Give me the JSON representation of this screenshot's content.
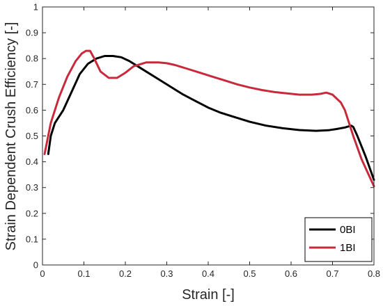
{
  "chart_data": {
    "type": "line",
    "title": "",
    "xlabel": "Strain [-]",
    "ylabel": "Strain Dependent Crush Efficiency [-]",
    "xlim": [
      0,
      0.8
    ],
    "ylim": [
      0,
      1
    ],
    "xticks": [
      "0",
      "0.1",
      "0.2",
      "0.3",
      "0.4",
      "0.5",
      "0.6",
      "0.7",
      "0.8"
    ],
    "yticks": [
      "0",
      "0.1",
      "0.2",
      "0.3",
      "0.4",
      "0.5",
      "0.6",
      "0.7",
      "0.8",
      "0.9",
      "1"
    ],
    "grid": false,
    "legend_position": "bottom-right",
    "series": [
      {
        "name": "0BI",
        "color": "#000000",
        "x": [
          0.014,
          0.02,
          0.03,
          0.05,
          0.07,
          0.09,
          0.11,
          0.13,
          0.15,
          0.17,
          0.19,
          0.21,
          0.23,
          0.25,
          0.28,
          0.31,
          0.34,
          0.37,
          0.4,
          0.43,
          0.46,
          0.5,
          0.54,
          0.58,
          0.62,
          0.66,
          0.69,
          0.71,
          0.73,
          0.745,
          0.75,
          0.76,
          0.78,
          0.8
        ],
        "y": [
          0.43,
          0.5,
          0.55,
          0.6,
          0.67,
          0.74,
          0.78,
          0.8,
          0.81,
          0.81,
          0.805,
          0.79,
          0.77,
          0.75,
          0.72,
          0.69,
          0.66,
          0.635,
          0.61,
          0.59,
          0.575,
          0.555,
          0.54,
          0.53,
          0.523,
          0.52,
          0.522,
          0.527,
          0.533,
          0.54,
          0.535,
          0.5,
          0.42,
          0.33
        ]
      },
      {
        "name": "1BI",
        "color": "#c8293b",
        "x": [
          0.005,
          0.01,
          0.02,
          0.04,
          0.06,
          0.08,
          0.095,
          0.105,
          0.115,
          0.125,
          0.14,
          0.16,
          0.18,
          0.2,
          0.22,
          0.25,
          0.28,
          0.3,
          0.32,
          0.35,
          0.38,
          0.41,
          0.44,
          0.47,
          0.5,
          0.53,
          0.56,
          0.59,
          0.62,
          0.65,
          0.67,
          0.685,
          0.7,
          0.72,
          0.73,
          0.75,
          0.77,
          0.8
        ],
        "y": [
          0.43,
          0.47,
          0.55,
          0.65,
          0.73,
          0.79,
          0.82,
          0.83,
          0.83,
          0.8,
          0.75,
          0.725,
          0.725,
          0.745,
          0.77,
          0.785,
          0.785,
          0.782,
          0.775,
          0.76,
          0.745,
          0.73,
          0.715,
          0.7,
          0.688,
          0.678,
          0.67,
          0.665,
          0.66,
          0.66,
          0.663,
          0.668,
          0.66,
          0.63,
          0.6,
          0.5,
          0.41,
          0.305
        ]
      }
    ]
  }
}
